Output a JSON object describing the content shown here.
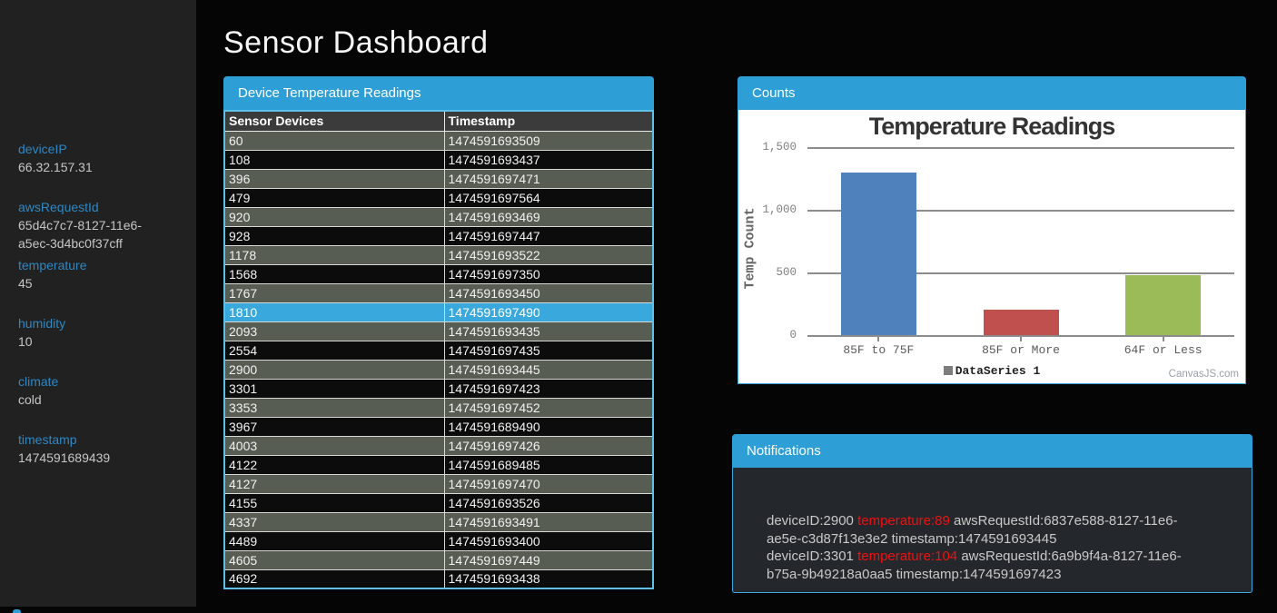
{
  "page": {
    "title": "Sensor Dashboard"
  },
  "sidebar": {
    "items": [
      {
        "label": "deviceIP",
        "value": "66.32.157.31"
      },
      {
        "label": "awsRequestId",
        "value": "65d4c7c7-8127-11e6-a5ec-3d4bc0f37cff"
      },
      {
        "label": "temperature",
        "value": "45",
        "tight": true
      },
      {
        "label": "humidity",
        "value": "10"
      },
      {
        "label": "climate",
        "value": "cold"
      },
      {
        "label": "timestamp",
        "value": "1474591689439"
      }
    ]
  },
  "device_table": {
    "panel_title": "Device Temperature Readings",
    "columns": [
      "Sensor Devices",
      "Timestamp"
    ],
    "selected_device": "1810",
    "rows": [
      [
        "60",
        "1474591693509"
      ],
      [
        "108",
        "1474591693437"
      ],
      [
        "396",
        "1474591697471"
      ],
      [
        "479",
        "1474591697564"
      ],
      [
        "920",
        "1474591693469"
      ],
      [
        "928",
        "1474591697447"
      ],
      [
        "1178",
        "1474591693522"
      ],
      [
        "1568",
        "1474591697350"
      ],
      [
        "1767",
        "1474591693450"
      ],
      [
        "1810",
        "1474591697490"
      ],
      [
        "2093",
        "1474591693435"
      ],
      [
        "2554",
        "1474591697435"
      ],
      [
        "2900",
        "1474591693445"
      ],
      [
        "3301",
        "1474591697423"
      ],
      [
        "3353",
        "1474591697452"
      ],
      [
        "3967",
        "1474591689490"
      ],
      [
        "4003",
        "1474591697426"
      ],
      [
        "4122",
        "1474591689485"
      ],
      [
        "4127",
        "1474591697470"
      ],
      [
        "4155",
        "1474591693526"
      ],
      [
        "4337",
        "1474591693491"
      ],
      [
        "4489",
        "1474591693400"
      ],
      [
        "4605",
        "1474591697449"
      ],
      [
        "4692",
        "1474591693438"
      ]
    ]
  },
  "counts_panel": {
    "panel_title": "Counts",
    "credit": "CanvasJS.com"
  },
  "chart_data": {
    "type": "bar",
    "title": "Temperature Readings",
    "categories": [
      "85F to 75F",
      "85F or More",
      "64F or Less"
    ],
    "values": [
      1300,
      200,
      480
    ],
    "series_colors": [
      "#4F81BC",
      "#C0504E",
      "#9BBB59"
    ],
    "xlabel": "",
    "ylabel": "Temp Count",
    "ylim": [
      0,
      1500
    ],
    "yticks": [
      0,
      500,
      1000,
      1500
    ],
    "ytick_labels": [
      "0",
      "500",
      "1,000",
      "1,500"
    ],
    "legend": [
      "DataSeries 1"
    ],
    "legend_position": "bottom",
    "grid": true
  },
  "notifications": {
    "panel_title": "Notifications",
    "alert_color": "#ef1111",
    "items": [
      {
        "device": "deviceID:2900",
        "temperature": "temperature:89",
        "rest": "awsRequestId:6837e588-8127-11e6-ae5e-c3d87f13e3e2 timestamp:1474591693445"
      },
      {
        "device": "deviceID:3301",
        "temperature": "temperature:104",
        "rest": "awsRequestId:6a9b9f4a-8127-11e6-b75a-9b49218a0aa5 timestamp:1474591697423"
      }
    ]
  },
  "colors": {
    "header_blue": "#2d9fd6",
    "selected_row_blue": "#39a9dd",
    "row_olive": "#575d53",
    "row_dark": "#0c0c0c",
    "sidebar_label_blue": "#2d88c5"
  }
}
